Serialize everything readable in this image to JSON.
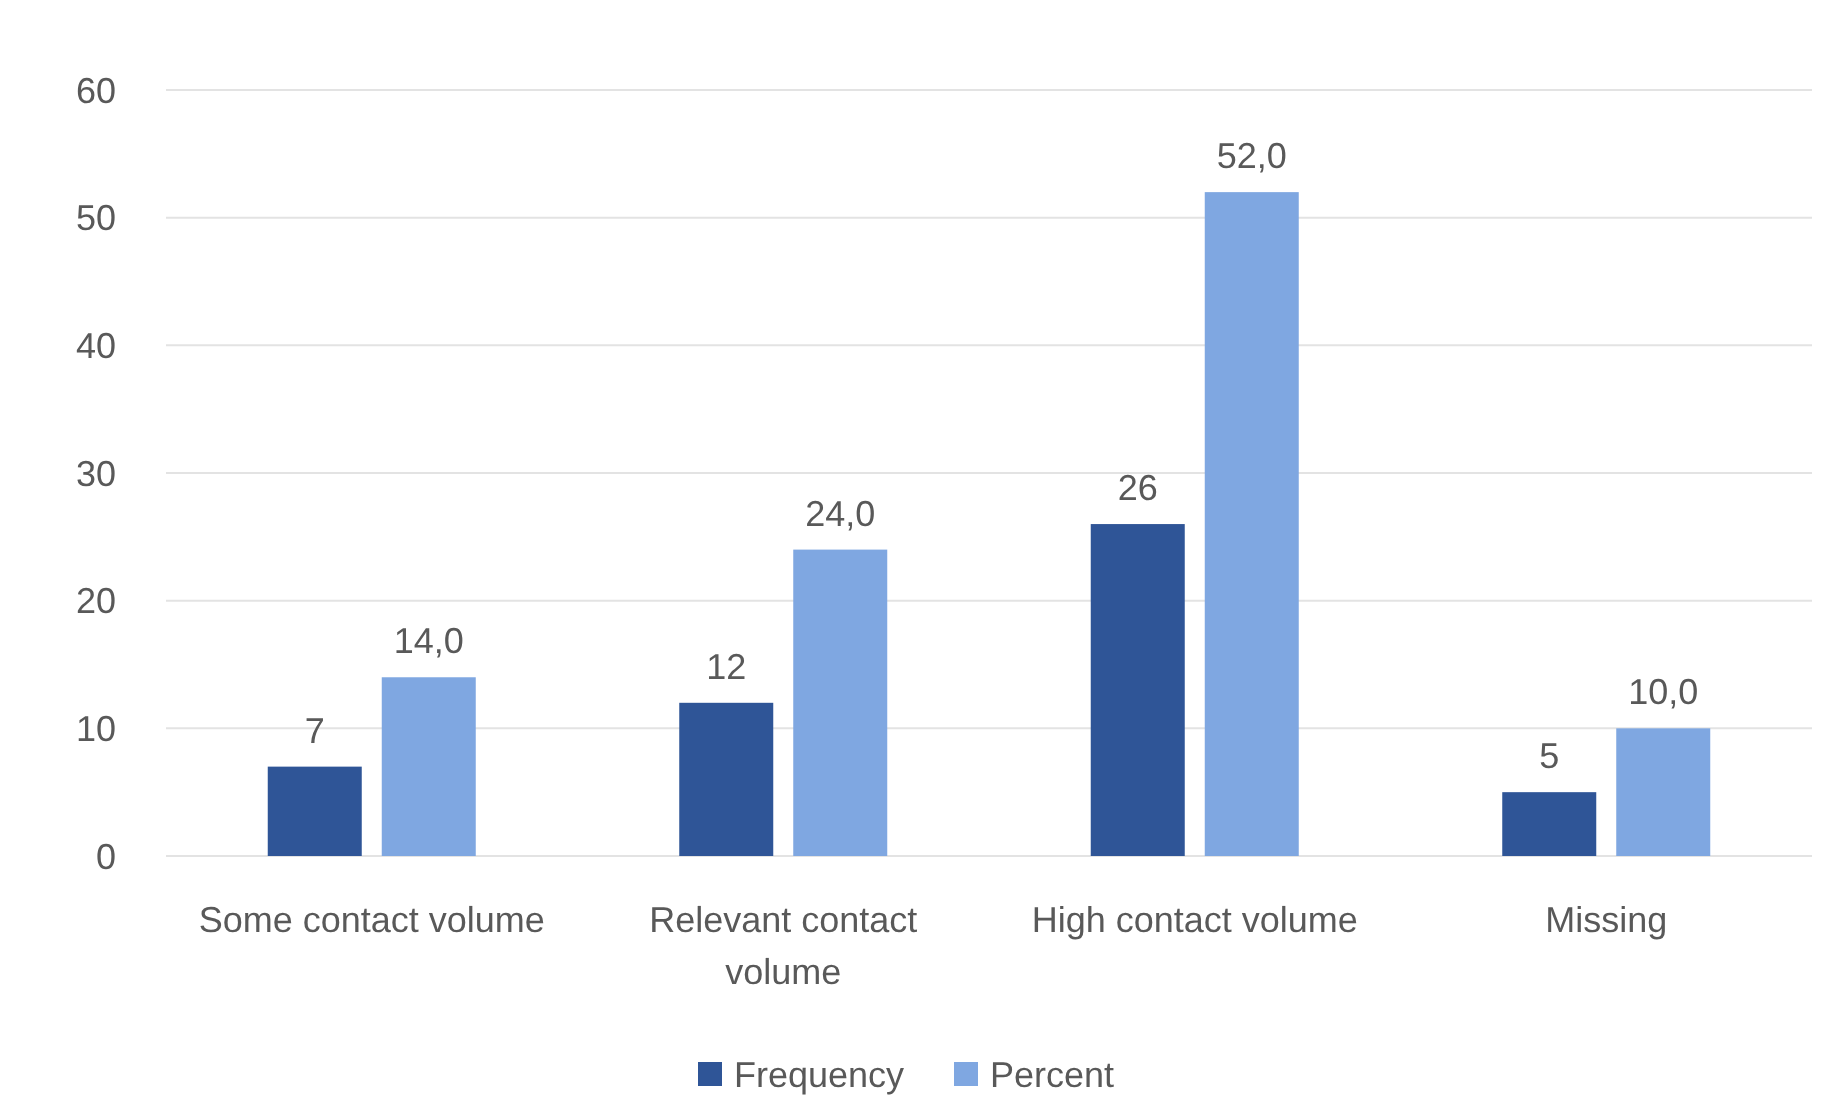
{
  "chart_data": {
    "type": "bar",
    "categories": [
      "Some contact volume",
      "Relevant contact volume",
      "High contact volume",
      "Missing"
    ],
    "series": [
      {
        "name": "Frequency",
        "color": "#2f5597",
        "values": [
          7,
          12,
          26,
          5
        ],
        "value_labels": [
          "7",
          "12",
          "26",
          "5"
        ]
      },
      {
        "name": "Percent",
        "color": "#7fa7e1",
        "values": [
          14,
          24,
          52,
          10
        ],
        "value_labels": [
          "14,0",
          "24,0",
          "52,0",
          "10,0"
        ]
      }
    ],
    "ylim": [
      0,
      60
    ],
    "yticks": [
      0,
      10,
      20,
      30,
      40,
      50,
      60
    ],
    "grid": "y",
    "legend": "bottom"
  }
}
